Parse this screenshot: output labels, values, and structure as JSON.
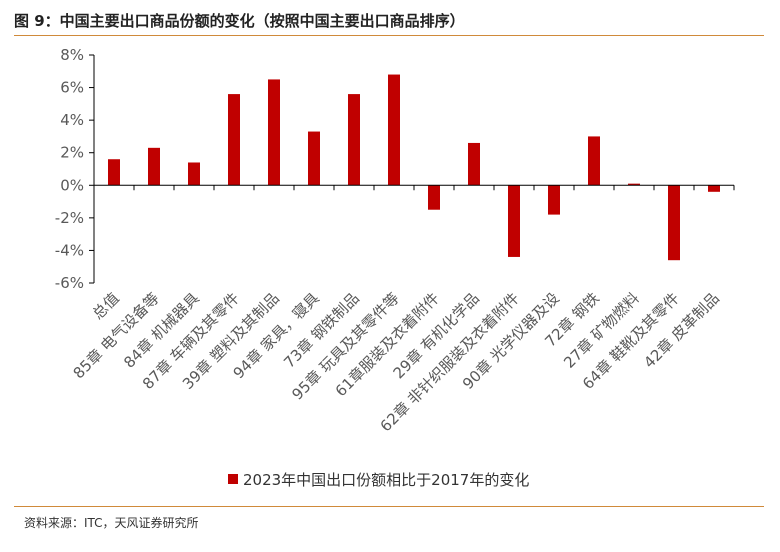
{
  "figure": {
    "title": "图 9：中国主要出口商品份额的变化（按照中国主要出口商品排序）",
    "source": "资料来源：ITC，天风证券研究所"
  },
  "colors": {
    "bar": "#c00000",
    "accent_rule": "#d08a3a",
    "axis": "#000000",
    "text": "#595959"
  },
  "chart_data": {
    "type": "bar",
    "title": "",
    "xlabel": "",
    "ylabel": "",
    "ylim": [
      -6,
      8
    ],
    "yticks": [
      -6,
      -4,
      -2,
      0,
      2,
      4,
      6,
      8
    ],
    "ytick_labels": [
      "-6%",
      "-4%",
      "-2%",
      "0%",
      "2%",
      "4%",
      "6%",
      "8%"
    ],
    "categories": [
      "总值",
      "85章 电气设备等",
      "84章 机械器具",
      "87章 车辆及其零件",
      "39章 塑料及其制品",
      "94章 家具，寝具",
      "73章 钢铁制品",
      "95章 玩具及其零件等",
      "61章服装及衣着附件",
      "29章 有机化学品",
      "62章 非针织服装及衣着附件",
      "90章 光学仪器及设",
      "72章 钢铁",
      "27章 矿物燃料",
      "64章 鞋靴及其零件",
      "42章 皮革制品"
    ],
    "series": [
      {
        "name": "2023年中国出口份额相比于2017年的变化",
        "values": [
          1.6,
          2.3,
          1.4,
          5.6,
          6.5,
          3.3,
          5.6,
          6.8,
          -1.5,
          2.6,
          -4.4,
          -1.8,
          3.0,
          0.1,
          -4.6,
          -0.4
        ]
      }
    ],
    "grid": false,
    "legend": "bottom-center"
  }
}
